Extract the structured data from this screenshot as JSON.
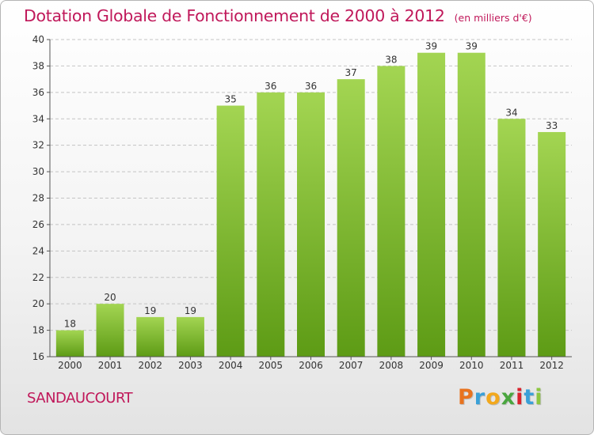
{
  "title": "Dotation Globale de Fonctionnement de 2000 à 2012",
  "subtitle": "(en milliers d'€)",
  "commune": "SANDAUCOURT",
  "logo": {
    "letters": [
      "P",
      "r",
      "o",
      "x",
      "i",
      "t",
      "i"
    ],
    "colors": [
      "#e8731f",
      "#3aa0d8",
      "#f2a81d",
      "#4aa63f",
      "#d9232d",
      "#3aa0d8",
      "#8cc63f"
    ]
  },
  "colors": {
    "title": "#c0185a",
    "bar_top": "#a3d552",
    "bar_bottom": "#5d9b15",
    "grid": "#c4c4c4"
  },
  "chart_data": {
    "type": "bar",
    "title": "Dotation Globale de Fonctionnement de 2000 à 2012",
    "subtitle": "(en milliers d'€)",
    "categories": [
      "2000",
      "2001",
      "2002",
      "2003",
      "2004",
      "2005",
      "2006",
      "2007",
      "2008",
      "2009",
      "2010",
      "2011",
      "2012"
    ],
    "values": [
      18,
      20,
      19,
      19,
      35,
      36,
      36,
      37,
      38,
      39,
      39,
      34,
      33
    ],
    "ylim": [
      16,
      40
    ],
    "yticks": [
      16,
      18,
      20,
      22,
      24,
      26,
      28,
      30,
      32,
      34,
      36,
      38,
      40
    ],
    "grid": true,
    "legend": "none"
  }
}
